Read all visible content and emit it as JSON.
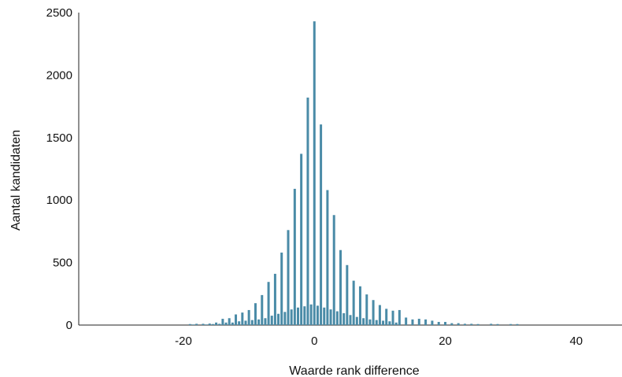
{
  "chart_data": {
    "type": "bar",
    "xlabel": "Waarde rank difference",
    "ylabel": "Aantal kandidaten",
    "xlim": [
      -36,
      47
    ],
    "ylim": [
      0,
      2500
    ],
    "xticks": [
      -20,
      0,
      20,
      40
    ],
    "yticks": [
      0,
      500,
      1000,
      1500,
      2000,
      2500
    ],
    "xtick_labels": [
      "-20",
      "0",
      "20",
      "40"
    ],
    "ytick_labels": [
      "0",
      "500",
      "1000",
      "1500",
      "2000",
      "2500"
    ],
    "grid": false,
    "bar_color": "#4a8ba7",
    "x": [
      -19,
      -18.5,
      -18,
      -17,
      -16.5,
      -16,
      -15.5,
      -15,
      -14.5,
      -14,
      -13.5,
      -13,
      -12.5,
      -12,
      -11.5,
      -11,
      -10.5,
      -10,
      -9.5,
      -9,
      -8.5,
      -8,
      -7.5,
      -7,
      -6.5,
      -6,
      -5.5,
      -5,
      -4.5,
      -4,
      -3.5,
      -3,
      -2.5,
      -2,
      -1.5,
      -1,
      -0.5,
      0,
      0.5,
      1,
      1.5,
      2,
      2.5,
      3,
      3.5,
      4,
      4.5,
      5,
      5.5,
      6,
      6.5,
      7,
      7.5,
      8,
      8.5,
      9,
      9.5,
      10,
      10.5,
      11,
      11.5,
      12,
      12.5,
      13,
      14,
      15,
      16,
      17,
      18,
      19,
      20,
      21,
      22,
      23,
      24,
      25,
      27,
      28,
      30,
      31
    ],
    "values": [
      8,
      5,
      10,
      10,
      5,
      12,
      8,
      20,
      10,
      50,
      20,
      55,
      20,
      85,
      30,
      100,
      35,
      120,
      40,
      175,
      45,
      240,
      55,
      345,
      75,
      410,
      90,
      580,
      105,
      760,
      125,
      1090,
      140,
      1370,
      150,
      1820,
      165,
      2430,
      155,
      1605,
      140,
      1080,
      125,
      880,
      110,
      600,
      95,
      480,
      80,
      355,
      65,
      310,
      55,
      245,
      45,
      200,
      40,
      160,
      35,
      130,
      30,
      115,
      20,
      120,
      60,
      45,
      50,
      45,
      35,
      25,
      25,
      15,
      15,
      10,
      10,
      8,
      10,
      8,
      8,
      8
    ]
  }
}
